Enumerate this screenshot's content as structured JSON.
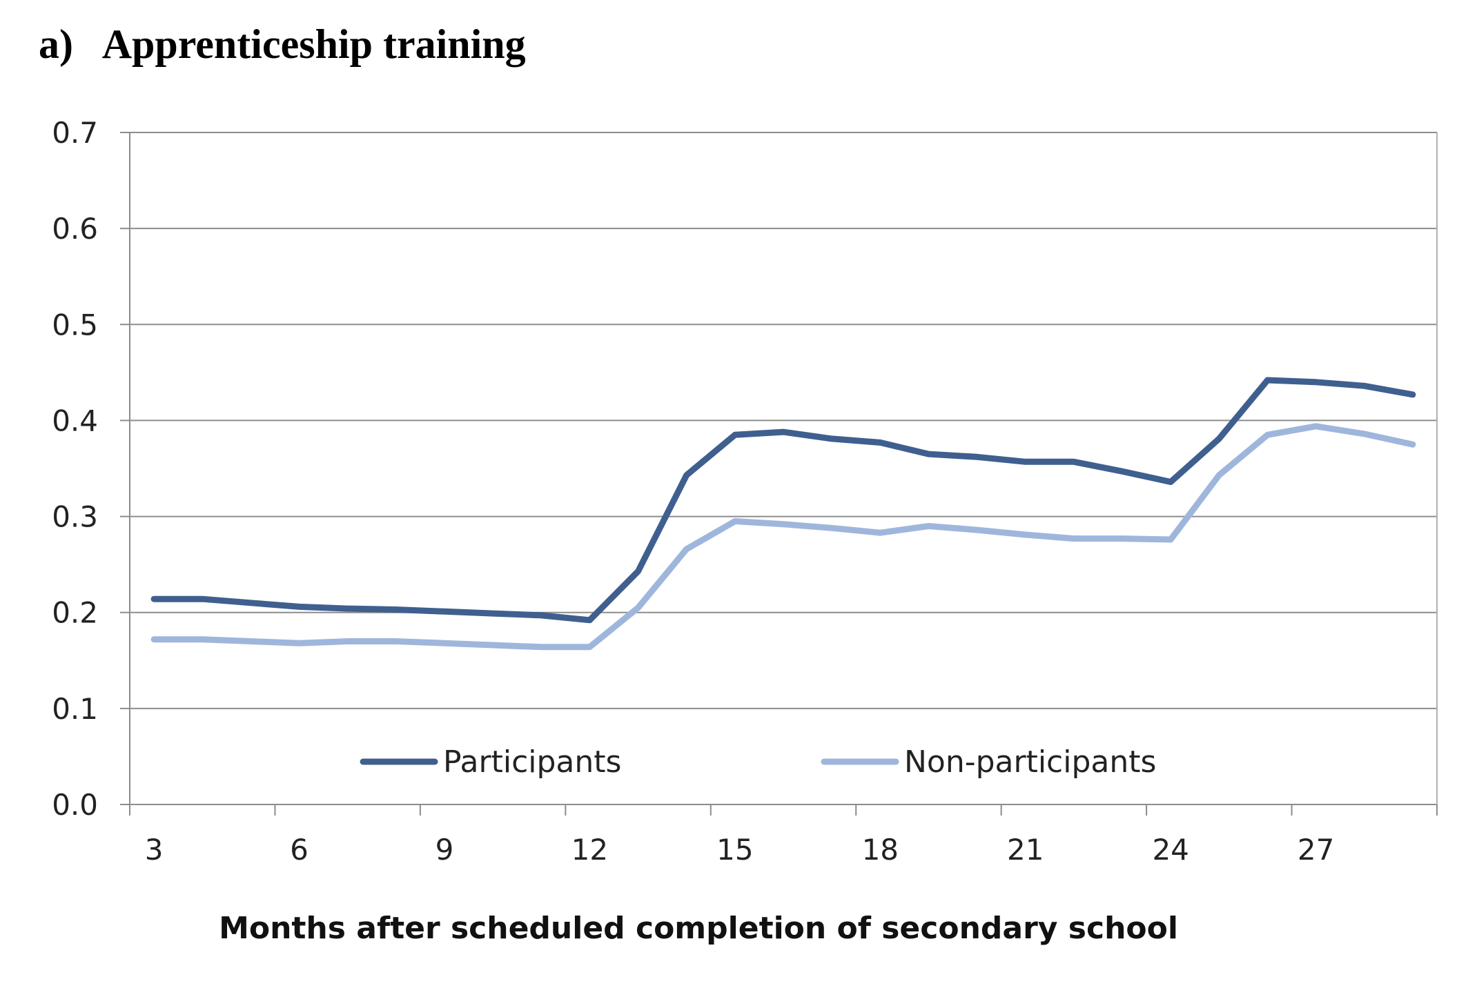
{
  "panel_label": "a)",
  "panel_title": "Apprenticeship training",
  "chart_data": {
    "type": "line",
    "title": "Apprenticeship training",
    "xlabel": "Months after scheduled completion of secondary school",
    "ylabel": "",
    "x": [
      3,
      4,
      5,
      6,
      7,
      8,
      9,
      10,
      11,
      12,
      13,
      14,
      15,
      16,
      17,
      18,
      19,
      20,
      21,
      22,
      23,
      24,
      25,
      26,
      27,
      28,
      29
    ],
    "x_ticks": [
      "3",
      "6",
      "9",
      "12",
      "15",
      "18",
      "21",
      "24",
      "27"
    ],
    "y_ticks": [
      "0.0",
      "0.1",
      "0.2",
      "0.3",
      "0.4",
      "0.5",
      "0.6",
      "0.7"
    ],
    "ylim": [
      0,
      0.7
    ],
    "xlim": [
      2.5,
      29.5
    ],
    "grid": "horizontal",
    "legend_position": "bottom",
    "series": [
      {
        "name": "Participants",
        "color": "#3f5f8f",
        "values": [
          0.214,
          0.214,
          0.21,
          0.206,
          0.204,
          0.203,
          0.201,
          0.199,
          0.197,
          0.192,
          0.243,
          0.343,
          0.385,
          0.388,
          0.381,
          0.377,
          0.365,
          0.362,
          0.357,
          0.357,
          0.347,
          0.336,
          0.381,
          0.442,
          0.44,
          0.436,
          0.427
        ]
      },
      {
        "name": "Non-participants",
        "color": "#9fb6dc",
        "values": [
          0.172,
          0.172,
          0.17,
          0.168,
          0.17,
          0.17,
          0.168,
          0.166,
          0.164,
          0.164,
          0.205,
          0.266,
          0.295,
          0.292,
          0.288,
          0.283,
          0.29,
          0.286,
          0.281,
          0.277,
          0.277,
          0.276,
          0.343,
          0.385,
          0.394,
          0.386,
          0.375
        ]
      }
    ]
  }
}
